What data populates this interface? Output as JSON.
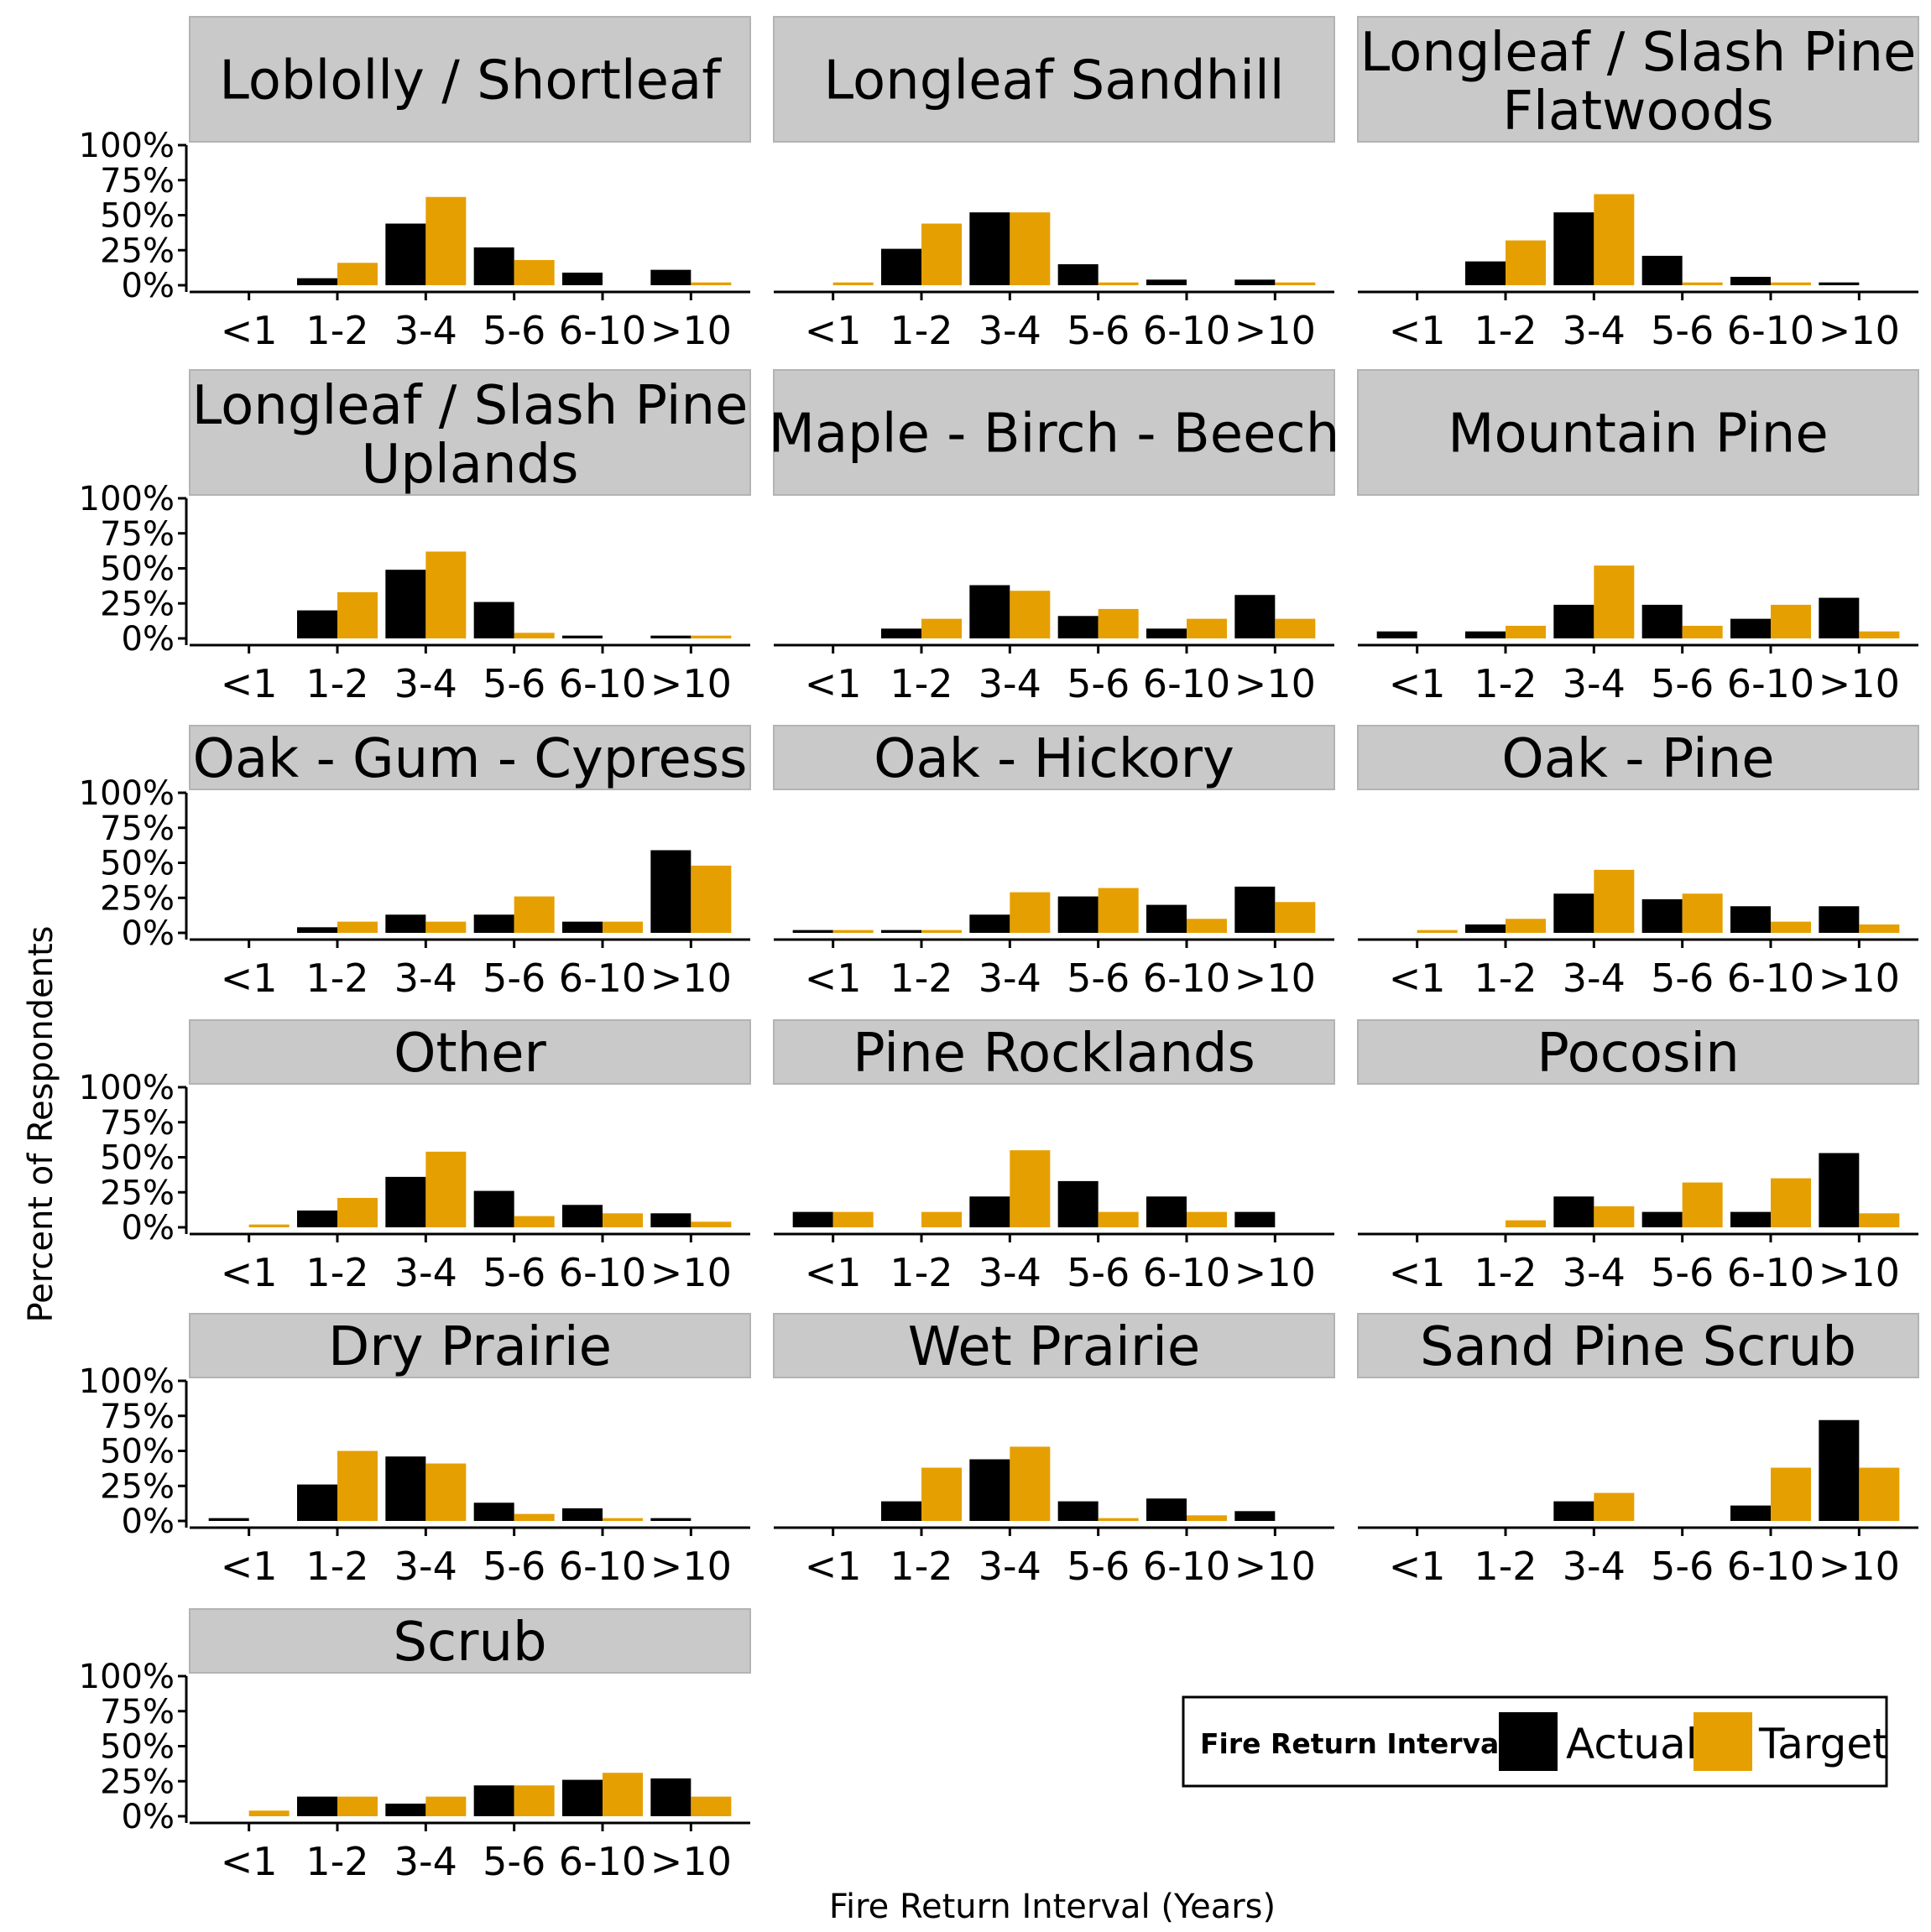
{
  "chart_data": {
    "type": "bar",
    "xlabel": "Fire Return Interval (Years)",
    "ylabel": "Percent of Respondents",
    "ylim": [
      0,
      1
    ],
    "y_ticks": [
      "0%",
      "25%",
      "50%",
      "75%",
      "100%"
    ],
    "categories": [
      "<1",
      "1-2",
      "3-4",
      "5-6",
      "6-10",
      ">10"
    ],
    "legend": {
      "title": "Fire Return Interval",
      "position": "bottom-right",
      "entries": [
        {
          "name": "Actual",
          "color": "#000000"
        },
        {
          "name": "Target",
          "color": "#E69F00"
        }
      ]
    },
    "panels": [
      {
        "title": [
          "Loblolly / Shortleaf"
        ],
        "actual": [
          0.0,
          0.05,
          0.44,
          0.27,
          0.09,
          0.11
        ],
        "target": [
          0.0,
          0.16,
          0.63,
          0.18,
          0.0,
          0.02
        ]
      },
      {
        "title": [
          "Longleaf Sandhill"
        ],
        "actual": [
          0.0,
          0.26,
          0.52,
          0.15,
          0.04,
          0.04
        ],
        "target": [
          0.02,
          0.44,
          0.52,
          0.02,
          0.0,
          0.02
        ]
      },
      {
        "title": [
          "Longleaf / Slash Pine",
          "Flatwoods"
        ],
        "actual": [
          0.0,
          0.17,
          0.52,
          0.21,
          0.06,
          0.02
        ],
        "target": [
          0.0,
          0.32,
          0.65,
          0.02,
          0.02,
          0.0
        ]
      },
      {
        "title": [
          "Longleaf / Slash Pine",
          "Uplands"
        ],
        "actual": [
          0.0,
          0.2,
          0.49,
          0.26,
          0.02,
          0.02
        ],
        "target": [
          0.0,
          0.33,
          0.62,
          0.04,
          0.0,
          0.02
        ]
      },
      {
        "title": [
          "Maple - Birch - Beech"
        ],
        "actual": [
          0.0,
          0.07,
          0.38,
          0.16,
          0.07,
          0.31
        ],
        "target": [
          0.0,
          0.14,
          0.34,
          0.21,
          0.14,
          0.14
        ]
      },
      {
        "title": [
          "Mountain Pine"
        ],
        "actual": [
          0.05,
          0.05,
          0.24,
          0.24,
          0.14,
          0.29
        ],
        "target": [
          0.0,
          0.09,
          0.52,
          0.09,
          0.24,
          0.05
        ]
      },
      {
        "title": [
          "Oak - Gum - Cypress"
        ],
        "actual": [
          0.0,
          0.04,
          0.13,
          0.13,
          0.08,
          0.59
        ],
        "target": [
          0.0,
          0.08,
          0.08,
          0.26,
          0.08,
          0.48
        ]
      },
      {
        "title": [
          "Oak - Hickory"
        ],
        "actual": [
          0.02,
          0.02,
          0.13,
          0.26,
          0.2,
          0.33
        ],
        "target": [
          0.02,
          0.02,
          0.29,
          0.32,
          0.1,
          0.22
        ]
      },
      {
        "title": [
          "Oak - Pine"
        ],
        "actual": [
          0.0,
          0.06,
          0.28,
          0.24,
          0.19,
          0.19
        ],
        "target": [
          0.02,
          0.1,
          0.45,
          0.28,
          0.08,
          0.06
        ]
      },
      {
        "title": [
          "Other"
        ],
        "actual": [
          0.0,
          0.12,
          0.36,
          0.26,
          0.16,
          0.1
        ],
        "target": [
          0.02,
          0.21,
          0.54,
          0.08,
          0.1,
          0.04
        ]
      },
      {
        "title": [
          "Pine Rocklands"
        ],
        "actual": [
          0.11,
          0.0,
          0.22,
          0.33,
          0.22,
          0.11
        ],
        "target": [
          0.11,
          0.11,
          0.55,
          0.11,
          0.11,
          0.0
        ]
      },
      {
        "title": [
          "Pocosin"
        ],
        "actual": [
          0.0,
          0.0,
          0.22,
          0.11,
          0.11,
          0.53
        ],
        "target": [
          0.0,
          0.05,
          0.15,
          0.32,
          0.35,
          0.1
        ]
      },
      {
        "title": [
          "Dry Prairie"
        ],
        "actual": [
          0.02,
          0.26,
          0.46,
          0.13,
          0.09,
          0.02
        ],
        "target": [
          0.0,
          0.5,
          0.41,
          0.05,
          0.02,
          0.0
        ]
      },
      {
        "title": [
          "Wet Prairie"
        ],
        "actual": [
          0.0,
          0.14,
          0.44,
          0.14,
          0.16,
          0.07
        ],
        "target": [
          0.0,
          0.38,
          0.53,
          0.02,
          0.04,
          0.0
        ]
      },
      {
        "title": [
          "Sand Pine Scrub"
        ],
        "actual": [
          0.0,
          0.0,
          0.14,
          0.0,
          0.11,
          0.72
        ],
        "target": [
          0.0,
          0.0,
          0.2,
          0.0,
          0.38,
          0.38
        ]
      },
      {
        "title": [
          "Scrub"
        ],
        "actual": [
          0.0,
          0.14,
          0.09,
          0.22,
          0.26,
          0.27
        ],
        "target": [
          0.04,
          0.14,
          0.14,
          0.22,
          0.31,
          0.14
        ]
      }
    ]
  }
}
